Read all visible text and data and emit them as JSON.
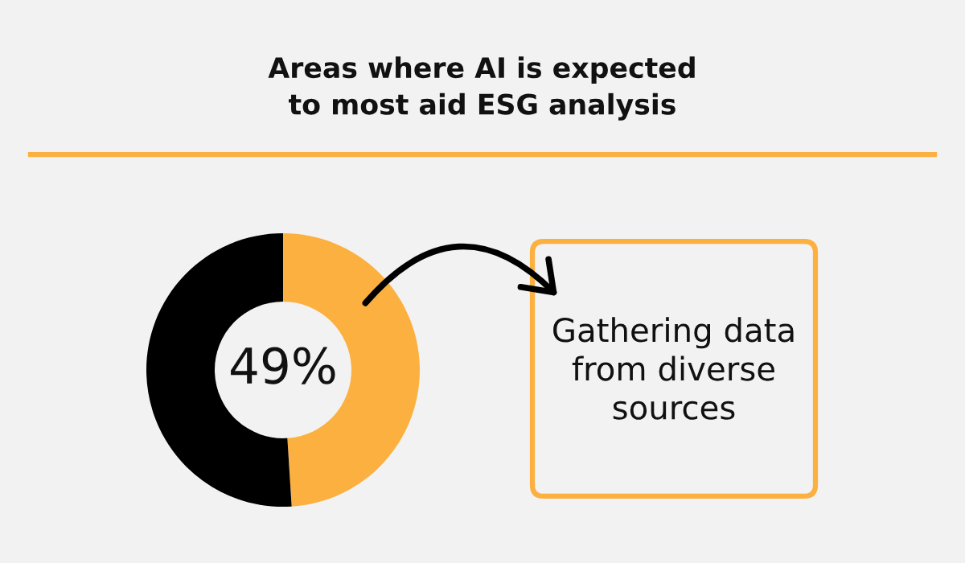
{
  "chart_data": {
    "type": "donut",
    "title": "Areas where AI is expected to most aid ESG analysis",
    "categories": [
      "Gathering data from diverse sources",
      null
    ],
    "values": [
      49,
      51
    ],
    "colors": [
      "#fbb040",
      "#000000"
    ],
    "value_labels": [
      "49%",
      null
    ]
  }
}
